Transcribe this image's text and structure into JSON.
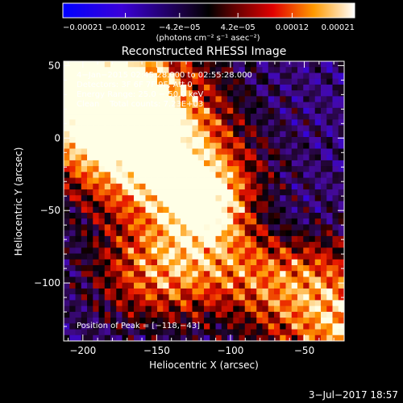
{
  "chart_data": {
    "type": "heatmap",
    "title": "Reconstructed RHESSI Image",
    "xlabel": "Heliocentric X (arcsec)",
    "ylabel": "Heliocentric Y (arcsec)",
    "xlim": [
      -213,
      -23
    ],
    "ylim": [
      -140,
      53
    ],
    "xticks": [
      -200,
      -150,
      -100,
      -50
    ],
    "xtick_labels": [
      "−200",
      "−150",
      "−100",
      "−50"
    ],
    "yticks": [
      50,
      0,
      -50,
      -100
    ],
    "ytick_labels": [
      "50",
      "0",
      "−50",
      "−100"
    ],
    "colorbar": {
      "range": [
        -0.00021,
        0.00021
      ],
      "ticks": [
        -0.00021,
        -0.00012,
        -4.2e-05,
        4.2e-05,
        0.00012,
        0.00021
      ],
      "tick_labels": [
        "−0.00021",
        "−0.00012",
        "−4.2e−05",
        "4.2e−05",
        "0.00012",
        "0.00021"
      ],
      "units": "(photons cm⁻² s⁻¹ asec⁻²)",
      "colors": [
        "#0000ff",
        "#4b00c8",
        "#000000",
        "#c80000",
        "#ff8c00",
        "#ffffff"
      ]
    },
    "annotations": [
      "4−Jan−2015 02:45:28.000 to 02:55:28.000",
      "Detectors: 3F 6F 7F 9F, Att 0",
      "Energy Range: 25.0 − 50.0 keV",
      "Clean    Total counts: 7.23E+03"
    ],
    "peak_label": "Position of Peak = [−118,−43]",
    "peak": [
      -118,
      -43
    ],
    "grid": false
  },
  "footer": {
    "timestamp": "3−Jul−2017 18:57"
  }
}
